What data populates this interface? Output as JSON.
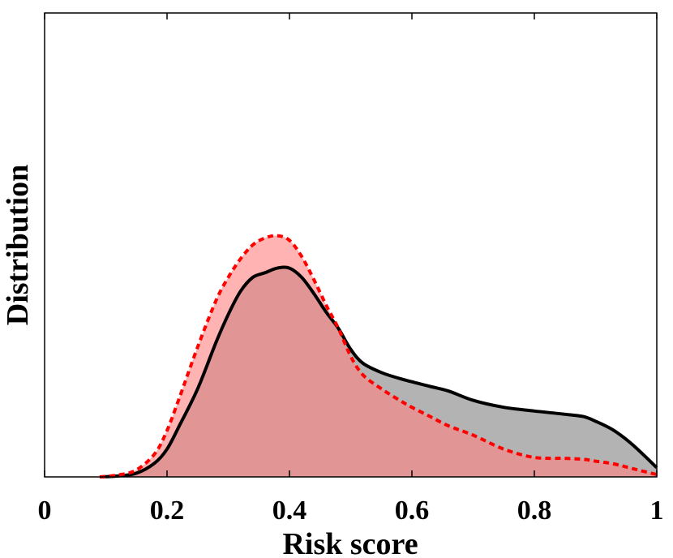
{
  "chart_data": {
    "type": "area",
    "title": "",
    "xlabel": "Risk score",
    "ylabel": "Distribution",
    "xlim": [
      0,
      1
    ],
    "ylim": [
      0,
      1
    ],
    "xticks": [
      "0",
      "0.2",
      "0.4",
      "0.6",
      "0.8",
      "1"
    ],
    "yticks_visible": false,
    "grid": false,
    "legend": "none",
    "series": [
      {
        "style": "solid",
        "line_color": "#000000",
        "fill_color": "#808080",
        "fill_opacity": 0.6,
        "x": [
          0.09,
          0.12,
          0.15,
          0.18,
          0.2,
          0.22,
          0.25,
          0.28,
          0.3,
          0.32,
          0.34,
          0.36,
          0.38,
          0.4,
          0.42,
          0.44,
          0.46,
          0.48,
          0.5,
          0.52,
          0.55,
          0.58,
          0.6,
          0.63,
          0.66,
          0.7,
          0.75,
          0.8,
          0.85,
          0.88,
          0.9,
          0.93,
          0.96,
          1.0
        ],
        "y": [
          0.0,
          0.002,
          0.008,
          0.03,
          0.06,
          0.11,
          0.19,
          0.29,
          0.35,
          0.4,
          0.43,
          0.44,
          0.45,
          0.45,
          0.43,
          0.395,
          0.355,
          0.32,
          0.275,
          0.245,
          0.225,
          0.212,
          0.205,
          0.195,
          0.185,
          0.165,
          0.15,
          0.142,
          0.135,
          0.13,
          0.12,
          0.1,
          0.07,
          0.02
        ]
      },
      {
        "style": "dotted",
        "line_color": "#ff0000",
        "fill_color": "#ff8080",
        "fill_opacity": 0.6,
        "x": [
          0.09,
          0.12,
          0.15,
          0.18,
          0.2,
          0.22,
          0.25,
          0.28,
          0.3,
          0.32,
          0.34,
          0.36,
          0.38,
          0.4,
          0.42,
          0.44,
          0.46,
          0.48,
          0.5,
          0.52,
          0.55,
          0.58,
          0.6,
          0.63,
          0.66,
          0.7,
          0.75,
          0.8,
          0.85,
          0.88,
          0.9,
          0.93,
          0.96,
          1.0
        ],
        "y": [
          0.0,
          0.004,
          0.015,
          0.05,
          0.1,
          0.17,
          0.28,
          0.38,
          0.43,
          0.47,
          0.5,
          0.515,
          0.52,
          0.51,
          0.475,
          0.425,
          0.37,
          0.32,
          0.26,
          0.22,
          0.19,
          0.165,
          0.15,
          0.13,
          0.11,
          0.09,
          0.06,
          0.042,
          0.04,
          0.038,
          0.034,
          0.028,
          0.018,
          0.005
        ]
      }
    ]
  }
}
